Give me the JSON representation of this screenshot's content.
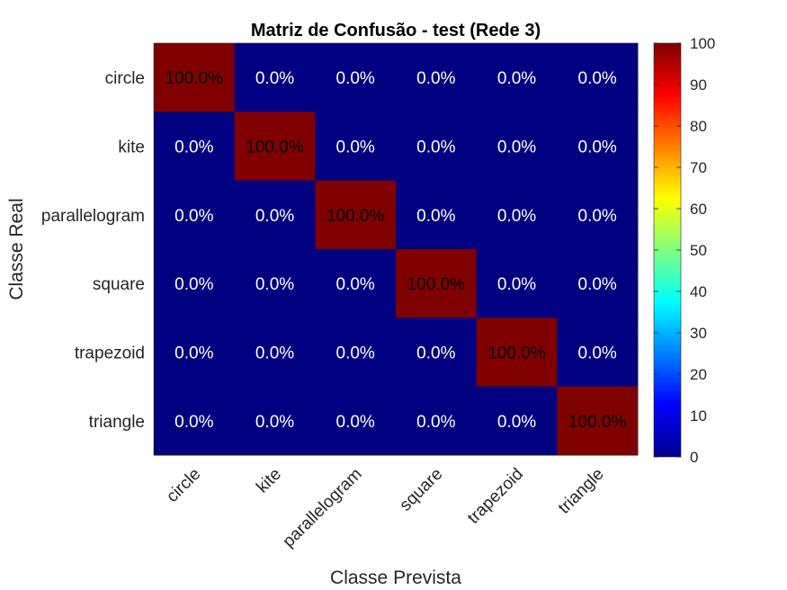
{
  "chart_data": {
    "type": "heatmap",
    "title": "Matriz de Confusão - test (Rede 3)",
    "xlabel": "Classe Prevista",
    "ylabel": "Classe Real",
    "x_categories": [
      "circle",
      "kite",
      "parallelogram",
      "square",
      "trapezoid",
      "triangle"
    ],
    "y_categories": [
      "circle",
      "kite",
      "parallelogram",
      "square",
      "trapezoid",
      "triangle"
    ],
    "values": [
      [
        100,
        0,
        0,
        0,
        0,
        0
      ],
      [
        0,
        100,
        0,
        0,
        0,
        0
      ],
      [
        0,
        0,
        100,
        0,
        0,
        0
      ],
      [
        0,
        0,
        0,
        100,
        0,
        0
      ],
      [
        0,
        0,
        0,
        0,
        100,
        0
      ],
      [
        0,
        0,
        0,
        0,
        0,
        100
      ]
    ],
    "cell_labels": [
      [
        "100.0%",
        "0.0%",
        "0.0%",
        "0.0%",
        "0.0%",
        "0.0%"
      ],
      [
        "0.0%",
        "100.0%",
        "0.0%",
        "0.0%",
        "0.0%",
        "0.0%"
      ],
      [
        "0.0%",
        "0.0%",
        "100.0%",
        "0.0%",
        "0.0%",
        "0.0%"
      ],
      [
        "0.0%",
        "0.0%",
        "0.0%",
        "100.0%",
        "0.0%",
        "0.0%"
      ],
      [
        "0.0%",
        "0.0%",
        "0.0%",
        "0.0%",
        "100.0%",
        "0.0%"
      ],
      [
        "0.0%",
        "0.0%",
        "0.0%",
        "0.0%",
        "0.0%",
        "100.0%"
      ]
    ],
    "colormap": "jet",
    "colorbar": {
      "range": [
        0,
        100
      ],
      "ticks": [
        0,
        10,
        20,
        30,
        40,
        50,
        60,
        70,
        80,
        90,
        100
      ]
    },
    "colors": {
      "low": "#000080",
      "high": "#800000"
    }
  }
}
